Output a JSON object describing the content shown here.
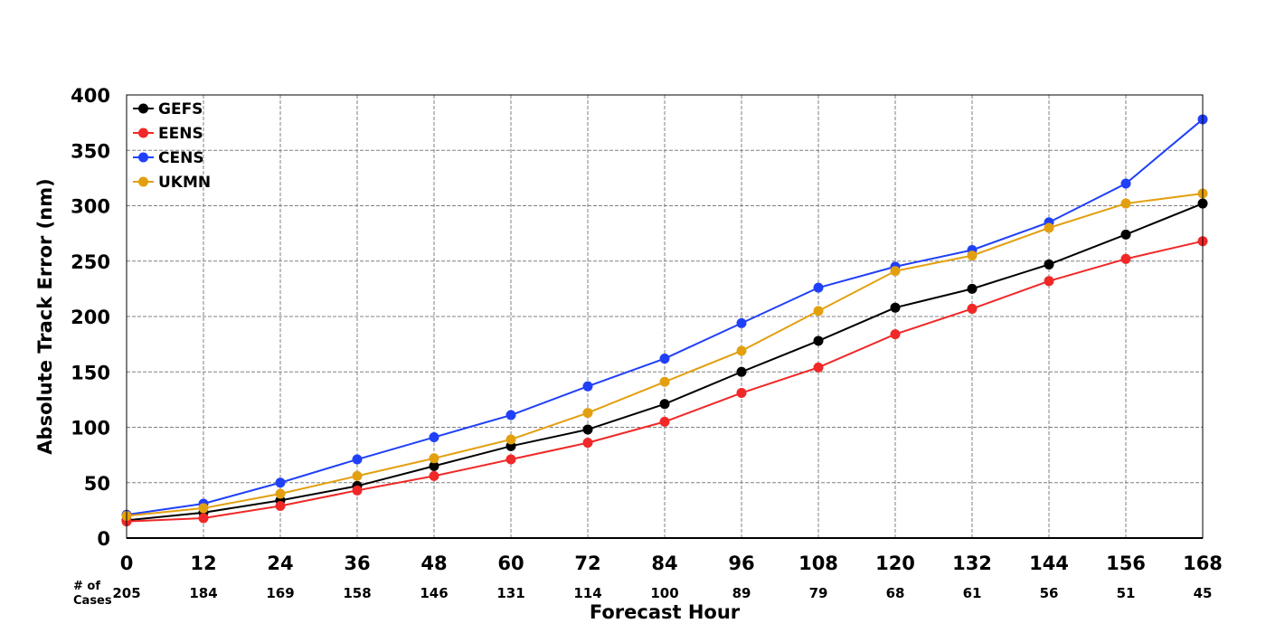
{
  "chart_data": {
    "type": "line",
    "title": "",
    "xlabel": "Forecast Hour",
    "ylabel": "Absolute Track Error (nm)",
    "x": [
      0,
      12,
      24,
      36,
      48,
      60,
      72,
      84,
      96,
      108,
      120,
      132,
      144,
      156,
      168
    ],
    "xlim": [
      0,
      168
    ],
    "ylim": [
      0,
      400
    ],
    "yticks": [
      0,
      50,
      100,
      150,
      200,
      250,
      300,
      350,
      400
    ],
    "grid": true,
    "legend_position": "top-left",
    "cases_label": [
      "# of",
      "Cases"
    ],
    "cases": [
      "205",
      "184",
      "169",
      "158",
      "146",
      "131",
      "114",
      "100",
      "89",
      "79",
      "68",
      "61",
      "56",
      "51",
      "45"
    ],
    "series": [
      {
        "name": "GEFS",
        "color": "#000000",
        "values": [
          16,
          23,
          34,
          47,
          65,
          83,
          98,
          121,
          150,
          178,
          208,
          225,
          247,
          274,
          302
        ]
      },
      {
        "name": "EENS",
        "color": "#f02828",
        "values": [
          15,
          18,
          29,
          43,
          56,
          71,
          86,
          105,
          131,
          154,
          184,
          207,
          232,
          252,
          268
        ]
      },
      {
        "name": "CENS",
        "color": "#2040f8",
        "values": [
          21,
          31,
          50,
          71,
          91,
          111,
          137,
          162,
          194,
          226,
          245,
          260,
          285,
          320,
          378
        ]
      },
      {
        "name": "UKMN",
        "color": "#e2a010",
        "values": [
          20,
          27,
          40,
          56,
          72,
          89,
          113,
          141,
          169,
          205,
          241,
          255,
          280,
          302,
          311
        ]
      }
    ]
  }
}
